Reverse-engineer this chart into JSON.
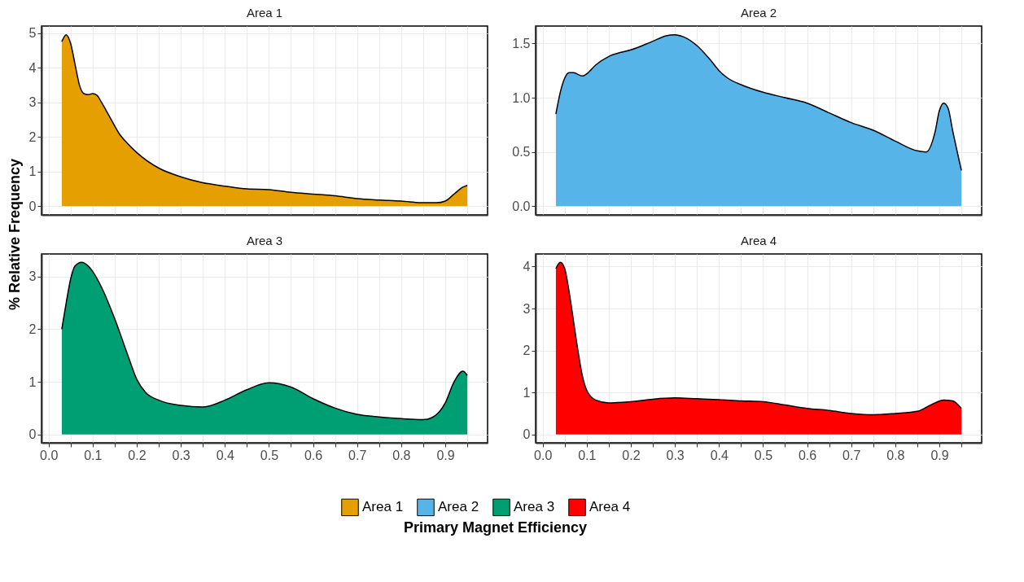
{
  "chart_data": [
    {
      "type": "area",
      "title": "Area 1",
      "ylabel": "% Relative Frequency",
      "x": [
        0.03,
        0.04,
        0.05,
        0.06,
        0.07,
        0.08,
        0.09,
        0.1,
        0.11,
        0.12,
        0.14,
        0.16,
        0.18,
        0.2,
        0.25,
        0.3,
        0.35,
        0.4,
        0.45,
        0.5,
        0.55,
        0.6,
        0.65,
        0.7,
        0.75,
        0.8,
        0.85,
        0.88,
        0.9,
        0.92,
        0.94,
        0.95
      ],
      "series": [
        {
          "name": "Area 1",
          "color": "#e69f00",
          "values": [
            4.75,
            4.95,
            4.7,
            4.1,
            3.5,
            3.25,
            3.22,
            3.25,
            3.2,
            3.0,
            2.55,
            2.1,
            1.8,
            1.55,
            1.1,
            0.85,
            0.68,
            0.58,
            0.5,
            0.48,
            0.4,
            0.35,
            0.3,
            0.22,
            0.18,
            0.15,
            0.1,
            0.1,
            0.15,
            0.35,
            0.55,
            0.6
          ]
        }
      ],
      "xlim": [
        -0.016,
        0.996
      ],
      "ylim": [
        -0.25,
        5.2
      ],
      "xticks": [
        0.0,
        {
          "value": 0.05,
          "label": null
        },
        0.1,
        {
          "value": 0.15,
          "label": null
        },
        0.2,
        {
          "value": 0.25,
          "label": null
        },
        0.3,
        {
          "value": 0.35,
          "label": null
        },
        0.4,
        {
          "value": 0.45,
          "label": null
        },
        0.5,
        {
          "value": 0.55,
          "label": null
        },
        0.6,
        {
          "value": 0.65,
          "label": null
        },
        0.7,
        {
          "value": 0.75,
          "label": null
        },
        0.8,
        {
          "value": 0.85,
          "label": null
        },
        0.9,
        {
          "value": 0.95,
          "label": null
        }
      ],
      "yticks": [
        0,
        1,
        2,
        3,
        4,
        5
      ],
      "tick_labels": "y",
      "grid": true,
      "legend": "bottom"
    },
    {
      "type": "area",
      "title": "Area 2",
      "x": [
        0.03,
        0.04,
        0.05,
        0.06,
        0.07,
        0.09,
        0.1,
        0.12,
        0.15,
        0.18,
        0.2,
        0.25,
        0.28,
        0.3,
        0.32,
        0.35,
        0.38,
        0.4,
        0.42,
        0.45,
        0.5,
        0.55,
        0.6,
        0.65,
        0.7,
        0.75,
        0.8,
        0.85,
        0.87,
        0.89,
        0.9,
        0.91,
        0.92,
        0.93,
        0.95
      ],
      "series": [
        {
          "name": "Area 2",
          "color": "#56b4e9",
          "values": [
            0.85,
            1.05,
            1.18,
            1.23,
            1.23,
            1.2,
            1.22,
            1.3,
            1.38,
            1.42,
            1.44,
            1.52,
            1.57,
            1.58,
            1.56,
            1.48,
            1.35,
            1.25,
            1.18,
            1.12,
            1.05,
            1.0,
            0.95,
            0.86,
            0.77,
            0.7,
            0.6,
            0.51,
            0.5,
            0.68,
            0.88,
            0.95,
            0.9,
            0.7,
            0.33
          ]
        }
      ],
      "xlim": [
        -0.016,
        0.996
      ],
      "ylim": [
        -0.08,
        1.66
      ],
      "xticks": [
        0.0,
        {
          "value": 0.05,
          "label": null
        },
        0.1,
        {
          "value": 0.15,
          "label": null
        },
        0.2,
        {
          "value": 0.25,
          "label": null
        },
        0.3,
        {
          "value": 0.35,
          "label": null
        },
        0.4,
        {
          "value": 0.45,
          "label": null
        },
        0.5,
        {
          "value": 0.55,
          "label": null
        },
        0.6,
        {
          "value": 0.65,
          "label": null
        },
        0.7,
        {
          "value": 0.75,
          "label": null
        },
        0.8,
        {
          "value": 0.85,
          "label": null
        },
        0.9,
        {
          "value": 0.95,
          "label": null
        }
      ],
      "yticks": [
        {
          "value": 0,
          "label": "0.0"
        },
        0.5,
        {
          "value": 1,
          "label": "1.0"
        },
        1.5
      ],
      "tick_labels": "y",
      "grid": true,
      "legend": "bottom"
    },
    {
      "type": "area",
      "title": "Area 3",
      "xlabel": "Primary Magnet Efficiency",
      "x": [
        0.03,
        0.04,
        0.05,
        0.06,
        0.075,
        0.09,
        0.1,
        0.12,
        0.15,
        0.18,
        0.2,
        0.22,
        0.25,
        0.3,
        0.35,
        0.4,
        0.45,
        0.5,
        0.55,
        0.6,
        0.65,
        0.7,
        0.75,
        0.8,
        0.85,
        0.87,
        0.9,
        0.92,
        0.94,
        0.95
      ],
      "series": [
        {
          "name": "Area 3",
          "color": "#009e73",
          "values": [
            2.0,
            2.5,
            2.95,
            3.2,
            3.27,
            3.2,
            3.1,
            2.8,
            2.2,
            1.5,
            1.05,
            0.8,
            0.65,
            0.55,
            0.52,
            0.65,
            0.85,
            0.98,
            0.9,
            0.68,
            0.5,
            0.38,
            0.33,
            0.3,
            0.28,
            0.32,
            0.6,
            1.0,
            1.2,
            1.12
          ]
        }
      ],
      "xlim": [
        -0.016,
        0.996
      ],
      "ylim": [
        -0.16,
        3.43
      ],
      "xticks": [
        {
          "value": 0,
          "label": "0.0"
        },
        {
          "value": 0.05,
          "label": null
        },
        0.1,
        {
          "value": 0.15,
          "label": null
        },
        0.2,
        {
          "value": 0.25,
          "label": null
        },
        0.3,
        {
          "value": 0.35,
          "label": null
        },
        0.4,
        {
          "value": 0.45,
          "label": null
        },
        0.5,
        {
          "value": 0.55,
          "label": null
        },
        0.6,
        {
          "value": 0.65,
          "label": null
        },
        0.7,
        {
          "value": 0.75,
          "label": null
        },
        0.8,
        {
          "value": 0.85,
          "label": null
        },
        0.9,
        {
          "value": 0.95,
          "label": null
        }
      ],
      "yticks": [
        0,
        1,
        2,
        3
      ],
      "grid": true,
      "legend": "bottom"
    },
    {
      "type": "area",
      "title": "Area 4",
      "x": [
        0.03,
        0.04,
        0.05,
        0.06,
        0.07,
        0.08,
        0.09,
        0.1,
        0.12,
        0.15,
        0.2,
        0.25,
        0.3,
        0.35,
        0.4,
        0.45,
        0.5,
        0.55,
        0.6,
        0.65,
        0.7,
        0.75,
        0.8,
        0.85,
        0.88,
        0.91,
        0.93,
        0.95
      ],
      "series": [
        {
          "name": "Area 4",
          "color": "#ff0000",
          "values": [
            3.95,
            4.1,
            3.95,
            3.4,
            2.7,
            2.0,
            1.4,
            1.05,
            0.82,
            0.75,
            0.78,
            0.84,
            0.87,
            0.85,
            0.83,
            0.8,
            0.78,
            0.7,
            0.62,
            0.57,
            0.5,
            0.47,
            0.5,
            0.55,
            0.7,
            0.82,
            0.8,
            0.62
          ]
        }
      ],
      "xlim": [
        -0.016,
        0.996
      ],
      "ylim": [
        -0.2,
        4.3
      ],
      "xticks": [
        {
          "value": 0,
          "label": "0.0"
        },
        {
          "value": 0.05,
          "label": null
        },
        0.1,
        {
          "value": 0.15,
          "label": null
        },
        0.2,
        {
          "value": 0.25,
          "label": null
        },
        0.3,
        {
          "value": 0.35,
          "label": null
        },
        0.4,
        {
          "value": 0.45,
          "label": null
        },
        0.5,
        {
          "value": 0.55,
          "label": null
        },
        0.6,
        {
          "value": 0.65,
          "label": null
        },
        0.7,
        {
          "value": 0.75,
          "label": null
        },
        0.8,
        {
          "value": 0.85,
          "label": null
        },
        0.9,
        {
          "value": 0.95,
          "label": null
        }
      ],
      "yticks": [
        0,
        1,
        2,
        3,
        4
      ],
      "grid": true,
      "legend": "bottom"
    }
  ]
}
